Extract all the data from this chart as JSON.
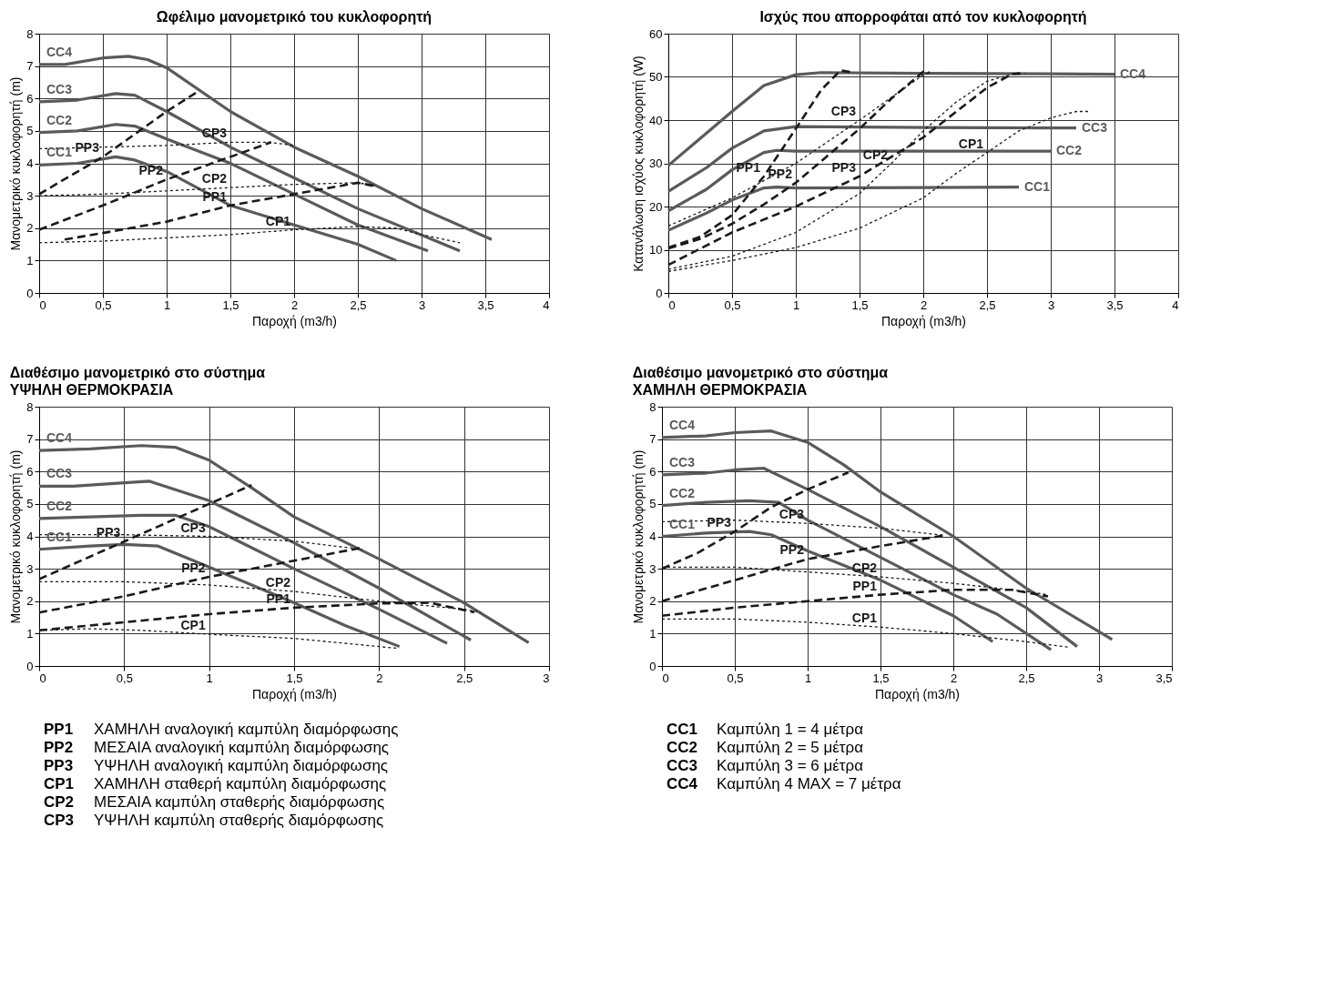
{
  "chart_data": [
    {
      "type": "line",
      "title": "Ωφέλιμο μανομετρικό του κυκλοφορητή",
      "xlabel": "Παροχή (m3/h)",
      "ylabel": "Μανομετρικό κυκλοφορητή (m)",
      "xlim": [
        0,
        4
      ],
      "ylim": [
        0,
        8
      ],
      "xticks": [
        0,
        {
          "value": 0.5,
          "label": "0,5"
        },
        1,
        {
          "value": 1.5,
          "label": "1,5"
        },
        2,
        {
          "value": 2.5,
          "label": "2,5"
        },
        3,
        {
          "value": 3.5,
          "label": "3,5"
        },
        4
      ],
      "yticks": [
        0,
        1,
        2,
        3,
        4,
        5,
        6,
        7,
        8
      ],
      "grid": true,
      "legend": false,
      "marker": "none",
      "series": [
        {
          "name": "CC1",
          "color": "#5a5a5a",
          "line_style": "solid",
          "x": [
            0,
            0.3,
            0.6,
            0.75,
            1,
            1.5,
            2,
            2.5,
            2.8
          ],
          "values": [
            3.95,
            4.0,
            4.2,
            4.1,
            3.75,
            2.7,
            2.1,
            1.5,
            1.0
          ]
        },
        {
          "name": "CC2",
          "color": "#5a5a5a",
          "line_style": "solid",
          "x": [
            0,
            0.3,
            0.6,
            0.75,
            1,
            1.5,
            2,
            2.5,
            3.05
          ],
          "values": [
            4.95,
            5.0,
            5.2,
            5.15,
            4.75,
            4.0,
            3.05,
            2.1,
            1.3
          ]
        },
        {
          "name": "CC3",
          "color": "#5a5a5a",
          "line_style": "solid",
          "x": [
            0,
            0.3,
            0.6,
            0.75,
            1,
            1.5,
            2,
            2.5,
            3.3
          ],
          "values": [
            5.9,
            5.95,
            6.15,
            6.1,
            5.6,
            4.5,
            3.55,
            2.6,
            1.3
          ]
        },
        {
          "name": "CC4",
          "color": "#5a5a5a",
          "line_style": "solid",
          "x": [
            0,
            0.2,
            0.5,
            0.7,
            0.85,
            1,
            1.5,
            2,
            2.5,
            3,
            3.55
          ],
          "values": [
            7.05,
            7.05,
            7.25,
            7.3,
            7.2,
            6.95,
            5.6,
            4.5,
            3.6,
            2.6,
            1.65
          ]
        },
        {
          "name": "PP1",
          "color": "#1a1a1a",
          "line_style": "dashed",
          "x": [
            0.2,
            0.5,
            1,
            1.5,
            2,
            2.5,
            2.63
          ],
          "values": [
            1.65,
            1.85,
            2.2,
            2.7,
            3.05,
            3.4,
            3.3
          ]
        },
        {
          "name": "PP2",
          "color": "#1a1a1a",
          "line_style": "dashed",
          "x": [
            0,
            0.5,
            1,
            1.5,
            1.82
          ],
          "values": [
            1.95,
            2.7,
            3.5,
            4.2,
            4.65
          ]
        },
        {
          "name": "PP3",
          "color": "#1a1a1a",
          "line_style": "dashed",
          "x": [
            0,
            0.5,
            1,
            1.26
          ],
          "values": [
            3.05,
            4.2,
            5.6,
            6.25
          ]
        },
        {
          "name": "CP1",
          "color": "#1a1a1a",
          "line_style": "dotted",
          "x": [
            0,
            0.5,
            1,
            1.5,
            2,
            2.5,
            2.8,
            3.0,
            3.3
          ],
          "values": [
            1.55,
            1.6,
            1.7,
            1.8,
            1.95,
            2.05,
            2.0,
            1.8,
            1.55
          ]
        },
        {
          "name": "CP2",
          "color": "#1a1a1a",
          "line_style": "dotted",
          "x": [
            0,
            0.5,
            1,
            1.5,
            2,
            2.5,
            2.65
          ],
          "values": [
            3.0,
            3.05,
            3.15,
            3.25,
            3.35,
            3.4,
            3.3
          ]
        },
        {
          "name": "CP3",
          "color": "#1a1a1a",
          "line_style": "dotted",
          "x": [
            0,
            0.5,
            1,
            1.5,
            1.8,
            2
          ],
          "values": [
            4.45,
            4.5,
            4.55,
            4.65,
            4.65,
            4.55
          ]
        }
      ]
    },
    {
      "type": "line",
      "title": "Ισχύς που απορροφάται από τον κυκλοφορητή",
      "xlabel": "Παροχή (m3/h)",
      "ylabel": "Κατανάλωση ισχύος κυκλοφορητή (W)",
      "xlim": [
        0,
        4
      ],
      "ylim": [
        0,
        60
      ],
      "xticks": [
        0,
        {
          "value": 0.5,
          "label": "0,5"
        },
        1,
        {
          "value": 1.5,
          "label": "1,5"
        },
        2,
        {
          "value": 2.5,
          "label": "2,5"
        },
        3,
        {
          "value": 3.5,
          "label": "3,5"
        },
        4
      ],
      "yticks": [
        0,
        10,
        20,
        30,
        40,
        50,
        60
      ],
      "grid": true,
      "legend": false,
      "marker": "none",
      "series": [
        {
          "name": "CC1",
          "color": "#5a5a5a",
          "line_style": "solid",
          "x": [
            0,
            0.3,
            0.5,
            0.75,
            0.85,
            1,
            2,
            2.75
          ],
          "values": [
            14.5,
            18.5,
            21.5,
            24.3,
            24.5,
            24.3,
            24.4,
            24.5
          ]
        },
        {
          "name": "CC2",
          "color": "#5a5a5a",
          "line_style": "solid",
          "x": [
            0,
            0.3,
            0.5,
            0.75,
            0.85,
            1,
            2,
            3
          ],
          "values": [
            19,
            24,
            28.5,
            32.5,
            33,
            32.8,
            32.8,
            32.8
          ]
        },
        {
          "name": "CC3",
          "color": "#5a5a5a",
          "line_style": "solid",
          "x": [
            0,
            0.3,
            0.5,
            0.75,
            1,
            2,
            3,
            3.2
          ],
          "values": [
            23.5,
            29,
            33.5,
            37.5,
            38.5,
            38.3,
            38.2,
            38.2
          ]
        },
        {
          "name": "CC4",
          "color": "#5a5a5a",
          "line_style": "solid",
          "x": [
            0,
            0.3,
            0.5,
            0.75,
            1,
            1.2,
            2,
            3,
            3.5
          ],
          "values": [
            29.5,
            37,
            42,
            48,
            50.5,
            51,
            50.8,
            50.7,
            50.6
          ]
        },
        {
          "name": "PP1",
          "color": "#1a1a1a",
          "line_style": "dashed",
          "x": [
            0,
            0.25,
            0.5,
            0.75,
            1,
            1.2,
            1.35,
            1.45
          ],
          "values": [
            10.5,
            13,
            18,
            27,
            38,
            47,
            51.5,
            51
          ]
        },
        {
          "name": "PP2",
          "color": "#1a1a1a",
          "line_style": "dashed",
          "x": [
            0,
            0.25,
            0.5,
            0.75,
            1,
            1.5,
            1.75,
            2,
            2.05
          ],
          "values": [
            10.3,
            12.5,
            16,
            20.5,
            25.5,
            38,
            45,
            51.2,
            51
          ]
        },
        {
          "name": "PP3",
          "color": "#1a1a1a",
          "line_style": "dashed",
          "x": [
            0,
            0.5,
            1,
            1.5,
            2,
            2.5,
            2.7,
            2.8
          ],
          "values": [
            6.5,
            14,
            20,
            27,
            36,
            47.5,
            50.7,
            50.8
          ]
        },
        {
          "name": "CP1",
          "color": "#1a1a1a",
          "line_style": "dotted",
          "x": [
            0,
            0.5,
            1,
            1.5,
            2,
            2.25,
            2.5,
            2.75,
            3,
            3.2,
            3.3
          ],
          "values": [
            5,
            7.5,
            10.5,
            15,
            22,
            27.5,
            32.5,
            37.5,
            40.5,
            42,
            42
          ]
        },
        {
          "name": "CP2",
          "color": "#1a1a1a",
          "line_style": "dotted",
          "x": [
            0,
            0.5,
            1,
            1.5,
            1.75,
            2,
            2.25,
            2.5,
            2.75
          ],
          "values": [
            5.5,
            8.5,
            14,
            23,
            30,
            37.5,
            44,
            49,
            51
          ]
        },
        {
          "name": "CP3",
          "color": "#1a1a1a",
          "line_style": "dotted",
          "x": [
            0,
            0.5,
            1,
            1.5,
            2,
            2.05
          ],
          "values": [
            15.5,
            22,
            30,
            40,
            50.5,
            51
          ]
        }
      ]
    },
    {
      "type": "line",
      "title": "Διαθέσιμο μανομετρικό στο σύστημα",
      "subtitle": "ΥΨΗΛΗ ΘΕΡΜΟΚΡΑΣΙΑ",
      "xlabel": "Παροχή (m3/h)",
      "ylabel": "Μανομετρικό κυκλοφορητή (m)",
      "xlim": [
        0,
        3
      ],
      "ylim": [
        0,
        8
      ],
      "xticks": [
        0,
        {
          "value": 0.5,
          "label": "0,5"
        },
        1,
        {
          "value": 1.5,
          "label": "1,5"
        },
        2,
        {
          "value": 2.5,
          "label": "2,5"
        },
        3
      ],
      "yticks": [
        0,
        1,
        2,
        3,
        4,
        5,
        6,
        7,
        8
      ],
      "grid": true,
      "legend": false,
      "marker": "none",
      "series": [
        {
          "name": "CC1",
          "color": "#5a5a5a",
          "line_style": "solid",
          "x": [
            0,
            0.3,
            0.5,
            0.7,
            1,
            1.5,
            1.8,
            2.12
          ],
          "values": [
            3.6,
            3.7,
            3.75,
            3.7,
            3.05,
            1.95,
            1.25,
            0.6
          ]
        },
        {
          "name": "CC2",
          "color": "#5a5a5a",
          "line_style": "solid",
          "x": [
            0,
            0.3,
            0.6,
            0.8,
            1,
            1.5,
            2,
            2.4
          ],
          "values": [
            4.55,
            4.6,
            4.65,
            4.65,
            4.3,
            3.0,
            1.75,
            0.7
          ]
        },
        {
          "name": "CC3",
          "color": "#5a5a5a",
          "line_style": "solid",
          "x": [
            0,
            0.2,
            0.5,
            0.65,
            1,
            1.5,
            2,
            2.54
          ],
          "values": [
            5.55,
            5.55,
            5.65,
            5.7,
            5.1,
            3.8,
            2.4,
            0.8
          ]
        },
        {
          "name": "CC4",
          "color": "#5a5a5a",
          "line_style": "solid",
          "x": [
            0,
            0.3,
            0.6,
            0.8,
            1,
            1.25,
            1.5,
            2,
            2.5,
            2.88
          ],
          "values": [
            6.65,
            6.7,
            6.8,
            6.75,
            6.35,
            5.5,
            4.6,
            3.3,
            1.95,
            0.72
          ]
        },
        {
          "name": "PP1",
          "color": "#1a1a1a",
          "line_style": "dashed",
          "x": [
            0,
            0.5,
            1,
            1.5,
            2,
            2.3,
            2.56
          ],
          "values": [
            1.1,
            1.35,
            1.6,
            1.8,
            1.93,
            1.95,
            1.66
          ]
        },
        {
          "name": "PP2",
          "color": "#1a1a1a",
          "line_style": "dashed",
          "x": [
            0,
            0.5,
            1,
            1.5,
            1.9
          ],
          "values": [
            1.65,
            2.15,
            2.75,
            3.25,
            3.65
          ]
        },
        {
          "name": "PP3",
          "color": "#1a1a1a",
          "line_style": "dashed",
          "x": [
            0,
            0.5,
            1,
            1.25
          ],
          "values": [
            2.68,
            3.84,
            5.0,
            5.58
          ]
        },
        {
          "name": "CP1",
          "color": "#1a1a1a",
          "line_style": "dotted",
          "x": [
            0,
            0.3,
            0.6,
            1,
            1.5,
            2,
            2.1
          ],
          "values": [
            1.1,
            1.15,
            1.1,
            0.98,
            0.85,
            0.6,
            0.55
          ]
        },
        {
          "name": "CP2",
          "color": "#1a1a1a",
          "line_style": "dotted",
          "x": [
            0,
            0.5,
            1,
            1.5,
            2,
            2.5,
            2.6
          ],
          "values": [
            2.6,
            2.6,
            2.5,
            2.3,
            2.0,
            1.75,
            1.65
          ]
        },
        {
          "name": "CP3",
          "color": "#1a1a1a",
          "line_style": "dotted",
          "x": [
            0,
            0.5,
            1,
            1.5,
            1.9
          ],
          "values": [
            4.05,
            4.05,
            4.0,
            3.85,
            3.6
          ]
        }
      ],
      "annotations": [
        "PP1 ΧΑΜΗΛΗ αναλογική καμπύλη διαμόρφωσης",
        "PP2 ΜΕΣΑΙΑ αναλογική καμπύλη διαμόρφωσης",
        "PP3 ΥΨΗΛΗ αναλογική καμπύλη διαμόρφωσης",
        "CP1 ΧΑΜΗΛΗ σταθερή καμπύλη διαμόρφωσης",
        "CP2 ΜΕΣΑΙΑ καμπύλη σταθερής διαμόρφωσης",
        "CP3 ΥΨΗΛΗ καμπύλη σταθερής διαμόρφωσης"
      ]
    },
    {
      "type": "line",
      "title": "Διαθέσιμο μανομετρικό στο σύστημα",
      "subtitle": "ΧΑΜΗΛΗ ΘΕΡΜΟΚΡΑΣΙΑ",
      "xlabel": "Παροχή (m3/h)",
      "ylabel": "Μανομετρικό κυκλοφορητή (m)",
      "xlim": [
        0,
        3.5
      ],
      "ylim": [
        0,
        8
      ],
      "xticks": [
        0,
        {
          "value": 0.5,
          "label": "0,5"
        },
        1,
        {
          "value": 1.5,
          "label": "1,5"
        },
        2,
        {
          "value": 2.5,
          "label": "2,5"
        },
        3,
        {
          "value": 3.5,
          "label": "3,5"
        }
      ],
      "yticks": [
        0,
        1,
        2,
        3,
        4,
        5,
        6,
        7,
        8
      ],
      "grid": true,
      "legend": false,
      "marker": "none",
      "series": [
        {
          "name": "CC1",
          "color": "#5a5a5a",
          "line_style": "solid",
          "x": [
            0,
            0.3,
            0.6,
            0.75,
            1,
            1.5,
            2,
            2.27
          ],
          "values": [
            4.0,
            4.1,
            4.15,
            4.05,
            3.55,
            2.65,
            1.55,
            0.75
          ]
        },
        {
          "name": "CC2",
          "color": "#5a5a5a",
          "line_style": "solid",
          "x": [
            0,
            0.3,
            0.6,
            0.8,
            1,
            1.5,
            2,
            2.3,
            2.67
          ],
          "values": [
            4.95,
            5.05,
            5.1,
            5.05,
            4.5,
            3.35,
            2.2,
            1.6,
            0.5
          ]
        },
        {
          "name": "CC3",
          "color": "#5a5a5a",
          "line_style": "solid",
          "x": [
            0,
            0.3,
            0.5,
            0.7,
            1,
            1.5,
            2,
            2.5,
            2.85
          ],
          "values": [
            5.9,
            5.95,
            6.05,
            6.1,
            5.45,
            4.3,
            3.05,
            1.8,
            0.6
          ]
        },
        {
          "name": "CC4",
          "color": "#5a5a5a",
          "line_style": "solid",
          "x": [
            0,
            0.3,
            0.5,
            0.75,
            1,
            1.25,
            1.5,
            2,
            2.5,
            3.09
          ],
          "values": [
            7.05,
            7.1,
            7.2,
            7.25,
            6.9,
            6.2,
            5.37,
            4.0,
            2.4,
            0.82
          ]
        },
        {
          "name": "PP1",
          "color": "#1a1a1a",
          "line_style": "dashed",
          "x": [
            0,
            0.5,
            1,
            1.5,
            2,
            2.4,
            2.65
          ],
          "values": [
            1.55,
            1.8,
            2.0,
            2.2,
            2.35,
            2.35,
            2.15
          ]
        },
        {
          "name": "PP2",
          "color": "#1a1a1a",
          "line_style": "dashed",
          "x": [
            0,
            0.5,
            1,
            1.5,
            1.94
          ],
          "values": [
            2.0,
            2.65,
            3.3,
            3.7,
            4.03
          ]
        },
        {
          "name": "PP3",
          "color": "#1a1a1a",
          "line_style": "dashed",
          "x": [
            0,
            0.25,
            0.5,
            0.75,
            1,
            1.28
          ],
          "values": [
            3.0,
            3.5,
            4.15,
            4.9,
            5.45,
            5.97
          ]
        },
        {
          "name": "CP1",
          "color": "#1a1a1a",
          "line_style": "dotted",
          "x": [
            0,
            0.5,
            1,
            1.5,
            2,
            2.5,
            2.79
          ],
          "values": [
            1.45,
            1.45,
            1.35,
            1.2,
            1.0,
            0.75,
            0.58
          ]
        },
        {
          "name": "CP2",
          "color": "#1a1a1a",
          "line_style": "dotted",
          "x": [
            0,
            0.5,
            1,
            1.5,
            2,
            2.5,
            2.65
          ],
          "values": [
            3.05,
            3.05,
            2.9,
            2.75,
            2.55,
            2.3,
            2.2
          ]
        },
        {
          "name": "CP3",
          "color": "#1a1a1a",
          "line_style": "dotted",
          "x": [
            0,
            0.5,
            1,
            1.5,
            1.94
          ],
          "values": [
            4.45,
            4.5,
            4.4,
            4.25,
            4.03
          ]
        }
      ],
      "annotations": [
        "CC1 Καμπύλη 1 = 4 μέτρα",
        "CC2 Καμπύλη 2 = 5 μέτρα",
        "CC3 Καμπύλη 3 = 6 μέτρα",
        "CC4 Καμπύλη 4 MAX = 7 μέτρα"
      ]
    }
  ]
}
